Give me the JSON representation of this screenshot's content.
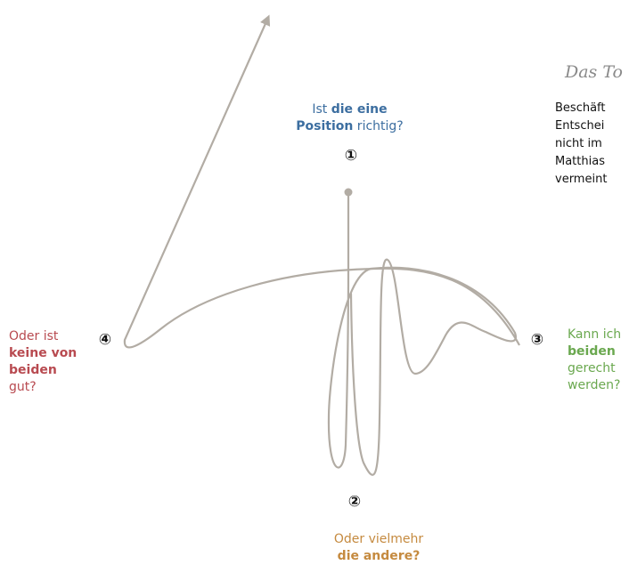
{
  "diagram": {
    "colors": {
      "path": "#b2aca4",
      "position_one": "#3c6ea0",
      "position_two": "#c58a3f",
      "position_three": "#6aa84f",
      "position_four": "#b84a50",
      "numbers": "#111111"
    },
    "markers": {
      "one": "①",
      "two": "②",
      "three": "③",
      "four": "④"
    },
    "position_one": {
      "pre": "Ist ",
      "bold1": "die eine",
      "bold2": "Position",
      "post": " richtig?"
    },
    "position_two": {
      "line1": "Oder vielmehr",
      "bold": "die andere?"
    },
    "position_three": {
      "line1": "Kann ich",
      "bold": "beiden",
      "line3": "gerecht",
      "line4": "werden?"
    },
    "position_four": {
      "line1": "Oder ist",
      "bold1": "keine von",
      "bold2": "beiden",
      "line4": "gut?"
    }
  },
  "side_panel": {
    "title": "Das To",
    "lines": [
      "Beschäft",
      "Entschei",
      "nicht im",
      "Matthias",
      "vermeint"
    ]
  }
}
